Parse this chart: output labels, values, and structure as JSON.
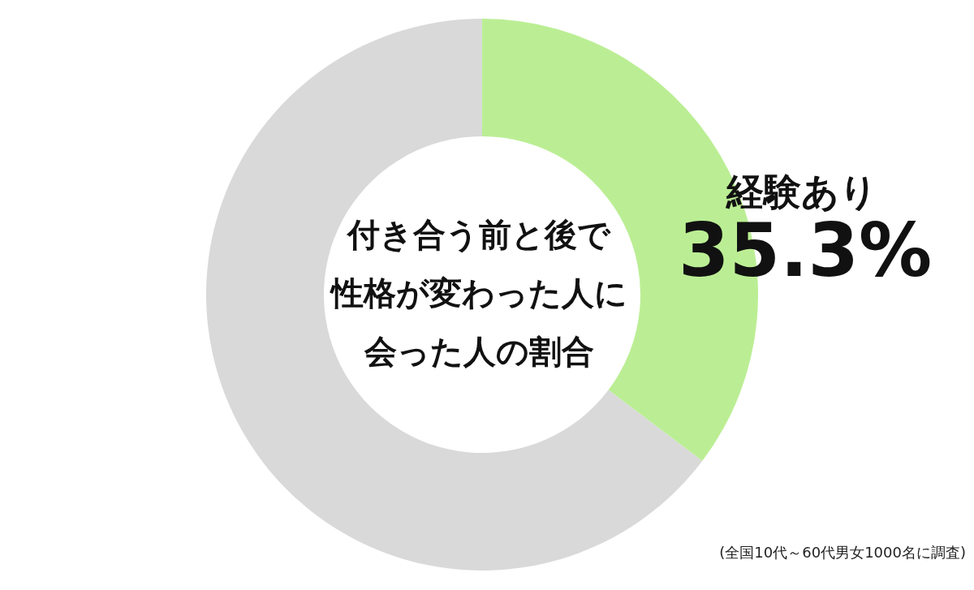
{
  "chart_data": {
    "type": "donut",
    "title": "付き合う前と後で性格が変わった人に会った人の割合",
    "categories": [
      "経験あり",
      null
    ],
    "values": [
      35.3,
      64.7
    ],
    "colors": [
      "#bbee94",
      "#d9d9d9"
    ],
    "value_labels": [
      "35.3%",
      null
    ],
    "annotations": [
      "(全国10代～60代男女1000名に調査)"
    ]
  }
}
